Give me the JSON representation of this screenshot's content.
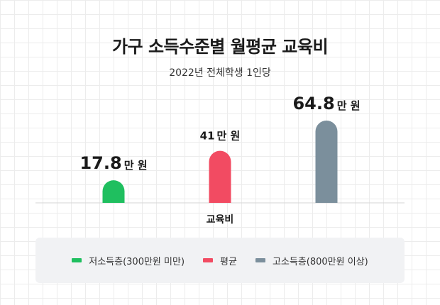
{
  "chart_data": {
    "type": "bar",
    "title": "가구 소득수준별 월평균 교육비",
    "subtitle": "2022년 전체학생 1인당",
    "categories": [
      "교육비"
    ],
    "unit": "만 원",
    "series": [
      {
        "name": "저소득층(300만원 미만)",
        "value": 17.8,
        "label_number": "17.8",
        "label_unit": "만 원",
        "color": "#1fbf5f"
      },
      {
        "name": "평균",
        "value": 41,
        "label_number": "41",
        "label_unit": "만 원",
        "color": "#f24b62"
      },
      {
        "name": "고소득층(800만원 이상)",
        "value": 64.8,
        "label_number": "64.8",
        "label_unit": "만 원",
        "color": "#7b8f9c"
      }
    ],
    "ylim": [
      0,
      64.8
    ],
    "grid": true,
    "legend_position": "bottom"
  }
}
